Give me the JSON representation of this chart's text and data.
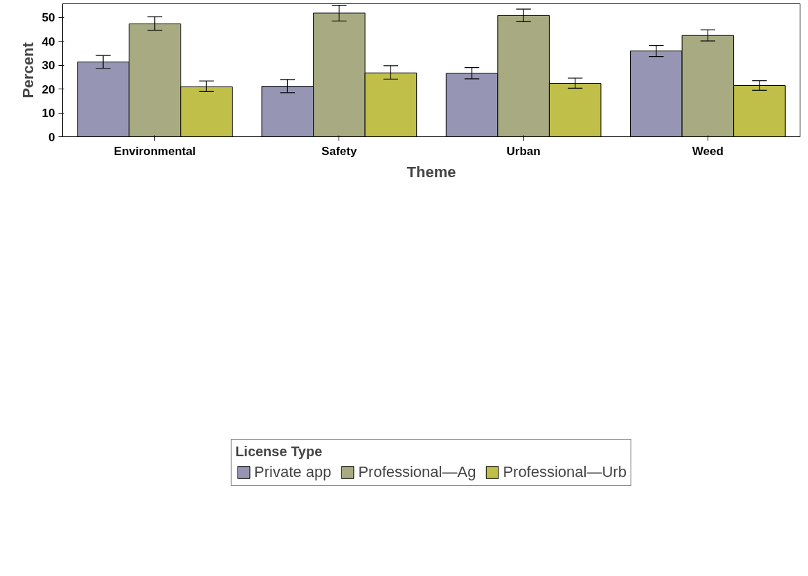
{
  "chart_data": {
    "type": "bar",
    "xlabel": "Theme",
    "ylabel": "Percent",
    "legend_title": "License Type",
    "categories": [
      "Environmental",
      "Safety",
      "Urban",
      "Weed"
    ],
    "series": [
      {
        "name": "Private app",
        "color": "#9696b4",
        "values": [
          31.4,
          21.2,
          26.6,
          36.0
        ],
        "errors": [
          [
            28.7,
            34.1
          ],
          [
            18.5,
            24.0
          ],
          [
            24.3,
            29.0
          ],
          [
            33.7,
            38.3
          ]
        ]
      },
      {
        "name": "Professional—Ag",
        "color": "#a8aa82",
        "values": [
          47.4,
          51.9,
          50.9,
          42.5
        ],
        "errors": [
          [
            44.7,
            50.4
          ],
          [
            48.6,
            55.2
          ],
          [
            48.3,
            53.6
          ],
          [
            40.2,
            44.9
          ]
        ]
      },
      {
        "name": "Professional—Urb",
        "color": "#c0bf4a",
        "values": [
          21.0,
          26.8,
          22.4,
          21.5
        ],
        "errors": [
          [
            18.9,
            23.4
          ],
          [
            24.2,
            29.8
          ],
          [
            20.4,
            24.6
          ],
          [
            19.5,
            23.5
          ]
        ]
      }
    ],
    "ylim": [
      0,
      55.8
    ],
    "yticks": [
      0,
      10,
      20,
      30,
      40,
      50
    ],
    "grid": false,
    "legend": "bottom"
  }
}
